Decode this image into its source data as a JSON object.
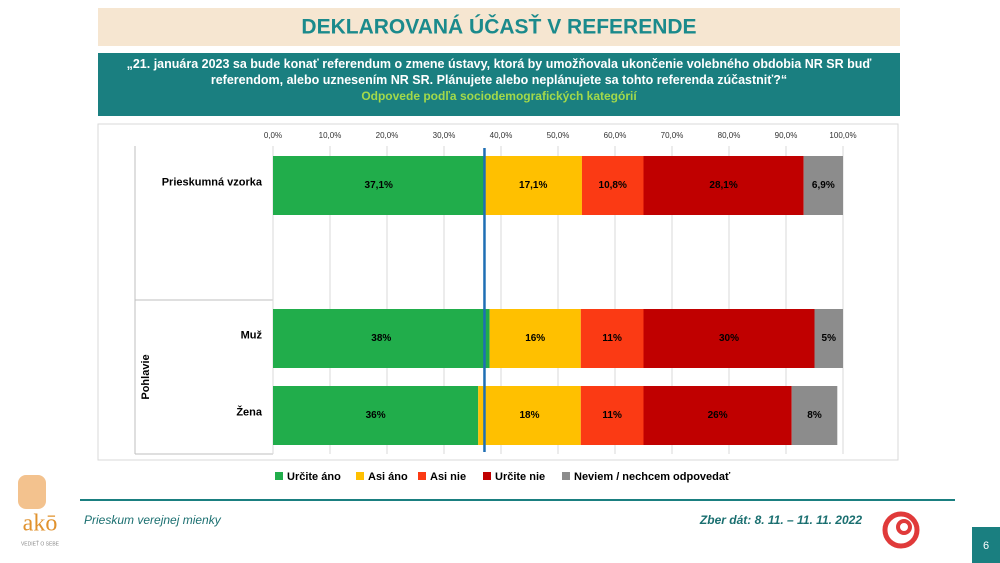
{
  "chart_data": {
    "type": "stacked-bar",
    "title": "DEKLAROVANÁ ÚČASŤ V REFERENDE",
    "subtitle": "„21. januára 2023 sa bude konať referendum o zmene ústavy, ktorá by umožňovala ukončenie volebného obdobia NR SR buď referendom, alebo uznesením NR SR. Plánujete alebo neplánujete sa tohto referenda zúčastniť?“",
    "note": "Odpovede podľa sociodemografických kategórií",
    "categories": [
      "Prieskumná vzorka",
      "Muž",
      "Žena"
    ],
    "group_label": "Pohlavie",
    "series": [
      {
        "name": "Určite áno",
        "color": "#21ad4b",
        "values": [
          37.1,
          38,
          36
        ],
        "value_labels": [
          "37,1%",
          "38%",
          "36%"
        ]
      },
      {
        "name": "Asi áno",
        "color": "#ffc000",
        "values": [
          17.1,
          16,
          18
        ],
        "value_labels": [
          "17,1%",
          "16%",
          "18%"
        ]
      },
      {
        "name": "Asi nie",
        "color": "#fb3a14",
        "values": [
          10.8,
          11,
          11
        ],
        "value_labels": [
          "10,8%",
          "11%",
          "11%"
        ]
      },
      {
        "name": "Určite nie",
        "color": "#c00000",
        "values": [
          28.1,
          30,
          26
        ],
        "value_labels": [
          "28,1%",
          "30%",
          "26%"
        ]
      },
      {
        "name": "Neviem / nechcem odpovedať",
        "color": "#8c8c8c",
        "values": [
          6.9,
          5,
          8
        ],
        "value_labels": [
          "6,9%",
          "5%",
          "8%"
        ]
      }
    ],
    "xlim": [
      0,
      100
    ],
    "xticks": [
      {
        "value": 0,
        "label": "0,0%"
      },
      {
        "value": 10,
        "label": "10,0%"
      },
      {
        "value": 20,
        "label": "20,0%"
      },
      {
        "value": 30,
        "label": "30,0%"
      },
      {
        "value": 40,
        "label": "40,0%"
      },
      {
        "value": 50,
        "label": "50,0%"
      },
      {
        "value": 60,
        "label": "60,0%"
      },
      {
        "value": 70,
        "label": "70,0%"
      },
      {
        "value": 80,
        "label": "80,0%"
      },
      {
        "value": 90,
        "label": "90,0%"
      },
      {
        "value": 100,
        "label": "100,0%"
      }
    ],
    "reference_line": true,
    "legend": "bottom"
  },
  "footer": {
    "left": "Prieskum verejnej mienky",
    "right": "Zber dát: 8. 11. – 11. 11. 2022",
    "page": "6",
    "logo": "akō",
    "logo_motto": "VEDIEŤ O SEBE"
  }
}
